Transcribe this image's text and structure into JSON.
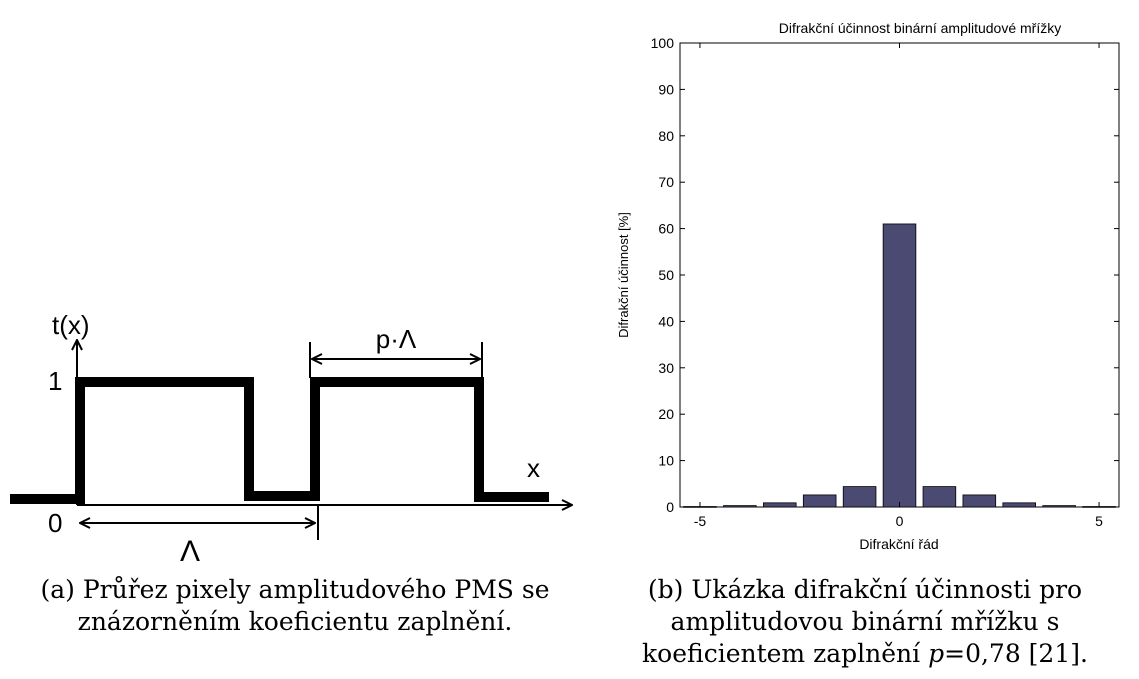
{
  "figure_a": {
    "y_axis_label": "t(x)",
    "x_axis_label": "x",
    "level_high": "1",
    "level_low": "0",
    "period_label": "Λ",
    "fill_label": "p·Λ"
  },
  "caption_a": {
    "line1": "(a) Průřez pixely amplitudového PMS se",
    "line2": "znázorněním koeficientu zaplnění."
  },
  "caption_b": {
    "line1": "(b) Ukázka difrakční účinnosti pro",
    "line2": "amplitudovou binární mřížku s",
    "line3_prefix": "koeficientem zaplnění ",
    "line3_var": "p",
    "line3_suffix": "=0,78 [21]."
  },
  "chart_data": {
    "type": "bar",
    "title": "Difrakční účinnost binární amplitudové mřížky",
    "xlabel": "Difrakční řád",
    "ylabel": "Difrakční účinnost [%]",
    "x": [
      -5,
      -4,
      -3,
      -2,
      -1,
      0,
      1,
      2,
      3,
      4,
      5
    ],
    "values": [
      0.1,
      0.3,
      0.9,
      2.6,
      4.4,
      61,
      4.4,
      2.6,
      0.9,
      0.3,
      0.1
    ],
    "xlim": [
      -5.5,
      5.5
    ],
    "ylim": [
      0,
      100
    ],
    "xticks": [
      -5,
      0,
      5
    ],
    "yticks": [
      0,
      10,
      20,
      30,
      40,
      50,
      60,
      70,
      80,
      90,
      100
    ],
    "bar_color": "#4a4a72",
    "grid": false
  }
}
